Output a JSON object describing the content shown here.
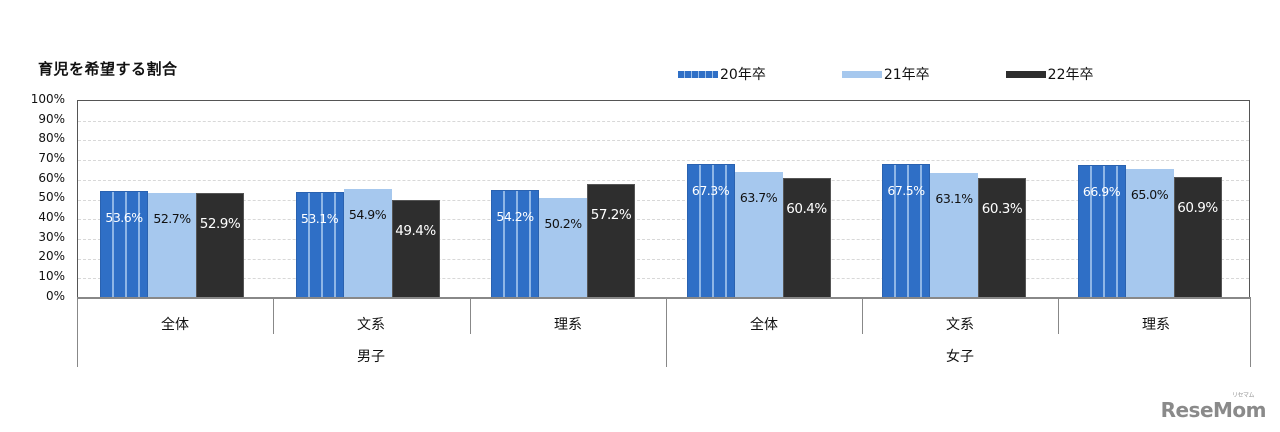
{
  "title": "育児を希望する割合",
  "legend": [
    {
      "label": "20年卒",
      "color": "#2f6fc6"
    },
    {
      "label": "21年卒",
      "color": "#a6c8ee"
    },
    {
      "label": "22年卒",
      "color": "#2e2e2e"
    }
  ],
  "y_axis": {
    "ticks": [
      "100%",
      "90%",
      "80%",
      "70%",
      "60%",
      "50%",
      "40%",
      "30%",
      "20%",
      "10%",
      "0%"
    ]
  },
  "categories": [
    {
      "label": "全体",
      "group": "男子",
      "values": [
        "53.6%",
        "52.7%",
        "52.9%"
      ]
    },
    {
      "label": "文系",
      "group": "男子",
      "values": [
        "53.1%",
        "54.9%",
        "49.4%"
      ]
    },
    {
      "label": "理系",
      "group": "男子",
      "values": [
        "54.2%",
        "50.2%",
        "57.2%"
      ]
    },
    {
      "label": "全体",
      "group": "女子",
      "values": [
        "67.3%",
        "63.7%",
        "60.4%"
      ]
    },
    {
      "label": "文系",
      "group": "女子",
      "values": [
        "67.5%",
        "63.1%",
        "60.3%"
      ]
    },
    {
      "label": "理系",
      "group": "女子",
      "values": [
        "66.9%",
        "65.0%",
        "60.9%"
      ]
    }
  ],
  "groups": [
    {
      "label": "男子"
    },
    {
      "label": "女子"
    }
  ],
  "watermark": {
    "text": "ReseMom",
    "sub": "リセマム"
  },
  "chart_data": {
    "type": "bar",
    "title": "育児を希望する割合",
    "xlabel": "",
    "ylabel": "",
    "ylim": [
      0,
      100
    ],
    "y_ticks": [
      0,
      10,
      20,
      30,
      40,
      50,
      60,
      70,
      80,
      90,
      100
    ],
    "y_tick_format": "%",
    "grid": true,
    "legend_position": "top-right",
    "categories": [
      "男子 全体",
      "男子 文系",
      "男子 理系",
      "女子 全体",
      "女子 文系",
      "女子 理系"
    ],
    "category_levels": {
      "inner": [
        "全体",
        "文系",
        "理系",
        "全体",
        "文系",
        "理系"
      ],
      "outer": [
        "男子",
        "男子",
        "男子",
        "女子",
        "女子",
        "女子"
      ]
    },
    "series": [
      {
        "name": "20年卒",
        "color": "#2f6fc6",
        "values": [
          53.6,
          53.1,
          54.2,
          67.3,
          67.5,
          66.9
        ]
      },
      {
        "name": "21年卒",
        "color": "#a6c8ee",
        "values": [
          52.7,
          54.9,
          50.2,
          63.7,
          63.1,
          65.0
        ]
      },
      {
        "name": "22年卒",
        "color": "#2e2e2e",
        "values": [
          52.9,
          49.4,
          57.2,
          60.4,
          60.3,
          60.9
        ]
      }
    ]
  }
}
